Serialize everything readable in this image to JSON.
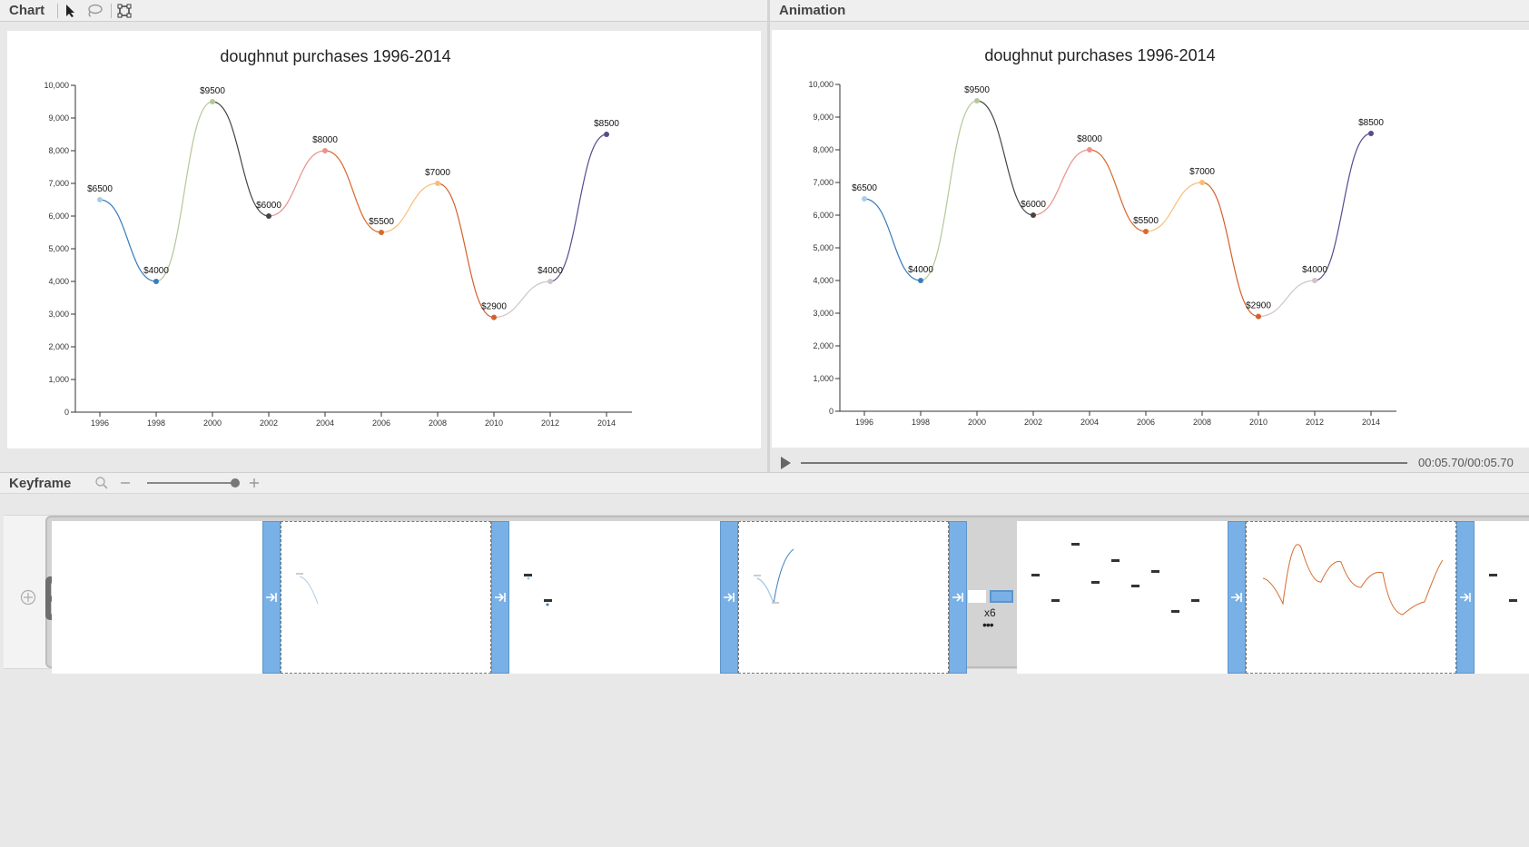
{
  "chart_panel": {
    "title": "Chart",
    "tools": [
      "pointer-icon",
      "lasso-icon",
      "crop-icon"
    ]
  },
  "animation_panel": {
    "title": "Animation",
    "time": "00:05.70/00:05.70"
  },
  "keyframe_panel": {
    "title": "Keyframe",
    "group_repeat": "x6",
    "more": "•••"
  },
  "colors": {
    "transition": "#79b1e6",
    "accent_line": "#777777"
  },
  "chart_data": {
    "type": "line",
    "title": "doughnut purchases 1996-2014",
    "x": [
      1996,
      1998,
      2000,
      2002,
      2004,
      2006,
      2008,
      2010,
      2012,
      2014
    ],
    "values": [
      6500,
      4000,
      9500,
      6000,
      8000,
      5500,
      7000,
      2900,
      4000,
      8500
    ],
    "data_labels": [
      "$6500",
      "$4000",
      "$9500",
      "$6000",
      "$8000",
      "$5500",
      "$7000",
      "$2900",
      "$4000",
      "$8500"
    ],
    "point_colors": [
      "#abcde6",
      "#3a7dba",
      "#b4c89a",
      "#444444",
      "#e8938c",
      "#d86a2e",
      "#f8bd7a",
      "#d4602c",
      "#cfc4c8",
      "#5a4a8e"
    ],
    "ylim": [
      0,
      10000
    ],
    "yticks": [
      "0",
      "1,000",
      "2,000",
      "3,000",
      "4,000",
      "5,000",
      "6,000",
      "7,000",
      "8,000",
      "9,000",
      "10,000"
    ],
    "xticks": [
      "1996",
      "1998",
      "2000",
      "2002",
      "2004",
      "2006",
      "2008",
      "2010",
      "2012",
      "2014"
    ],
    "grid": false,
    "curve": "smooth"
  }
}
